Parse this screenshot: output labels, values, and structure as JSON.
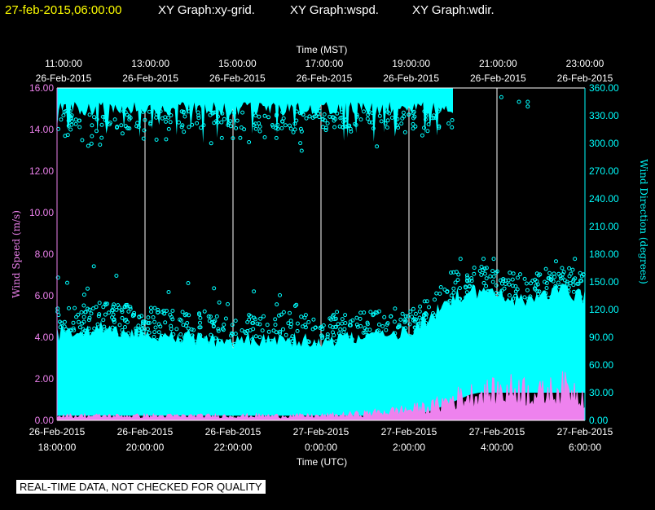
{
  "header": {
    "timestamp": "27-feb-2015,06:00:00",
    "graphs": [
      "XY Graph:xy-grid.",
      "XY Graph:wspd.",
      "XY Graph:wdir."
    ]
  },
  "footer": {
    "quality_note": "REAL-TIME DATA, NOT CHECKED FOR QUALITY"
  },
  "colors": {
    "speed": "#ee82ee",
    "direction": "#00ffff",
    "background": "#000000",
    "grid": "#ffffff",
    "timestamp": "#ffff00"
  },
  "chart_data": {
    "type": "scatter",
    "top_axis": {
      "label": "Time (MST)",
      "ticks": [
        {
          "time": "11:00:00",
          "date": "26-Feb-2015"
        },
        {
          "time": "13:00:00",
          "date": "26-Feb-2015"
        },
        {
          "time": "15:00:00",
          "date": "26-Feb-2015"
        },
        {
          "time": "17:00:00",
          "date": "26-Feb-2015"
        },
        {
          "time": "19:00:00",
          "date": "26-Feb-2015"
        },
        {
          "time": "21:00:00",
          "date": "26-Feb-2015"
        },
        {
          "time": "23:00:00",
          "date": "26-Feb-2015"
        }
      ]
    },
    "bottom_axis": {
      "label": "Time (UTC)",
      "range": [
        "2015-02-26 18:00",
        "2015-02-27 06:00"
      ],
      "ticks": [
        {
          "date": "26-Feb-2015",
          "time": "18:00:00"
        },
        {
          "date": "26-Feb-2015",
          "time": "20:00:00"
        },
        {
          "date": "26-Feb-2015",
          "time": "22:00:00"
        },
        {
          "date": "27-Feb-2015",
          "time": "0:00:00"
        },
        {
          "date": "27-Feb-2015",
          "time": "2:00:00"
        },
        {
          "date": "27-Feb-2015",
          "time": "4:00:00"
        },
        {
          "date": "27-Feb-2015",
          "time": "6:00:00"
        }
      ]
    },
    "left_axis": {
      "label": "Wind Speed (m/s)",
      "range": [
        0,
        16
      ],
      "ticks": [
        "0.00",
        "2.00",
        "4.00",
        "6.00",
        "8.00",
        "10.00",
        "12.00",
        "14.00",
        "16.00"
      ]
    },
    "right_axis": {
      "label": "Wind Direction (degrees)",
      "range": [
        0,
        360
      ],
      "ticks": [
        "0.00",
        "30.00",
        "60.00",
        "90.00",
        "120.00",
        "150.00",
        "180.00",
        "210.00",
        "240.00",
        "270.00",
        "300.00",
        "330.00",
        "360.00"
      ]
    },
    "grid": "vertical",
    "series": [
      {
        "name": "wspd",
        "axis": "left",
        "x_hours_utc": [
          18,
          19,
          20,
          21,
          22,
          23,
          24,
          25,
          26,
          26.5,
          27,
          27.5,
          28,
          28.5,
          29,
          29.5,
          30
        ],
        "y": [
          0.2,
          0.2,
          0.2,
          0.2,
          0.2,
          0.2,
          0.2,
          0.3,
          0.5,
          0.6,
          1.0,
          1.2,
          1.3,
          1.5,
          1.2,
          1.5,
          1.2
        ]
      },
      {
        "name": "wdir",
        "axis": "right",
        "band_low": {
          "x_hours_utc": [
            18,
            19,
            20,
            21,
            22,
            23,
            24,
            25,
            26,
            26.5,
            27,
            27.5,
            28,
            28.5,
            29,
            29.5,
            30
          ],
          "y": [
            5,
            5,
            5,
            5,
            5,
            5,
            5,
            5,
            5,
            10,
            20,
            30,
            30,
            30,
            30,
            30,
            30
          ]
        },
        "band_high": {
          "x_hours_utc": [
            18,
            19,
            20,
            21,
            22,
            23,
            24,
            25,
            26,
            26.5,
            27,
            27.5,
            28,
            28.5,
            29,
            29.5,
            30
          ],
          "y": [
            95,
            100,
            95,
            90,
            85,
            90,
            85,
            90,
            95,
            110,
            135,
            140,
            135,
            130,
            135,
            140,
            135
          ]
        },
        "upper_band": {
          "y_range": [
            330,
            360
          ],
          "x_hours_utc": [
            18,
            27
          ],
          "dropouts_to": 290
        }
      }
    ]
  }
}
